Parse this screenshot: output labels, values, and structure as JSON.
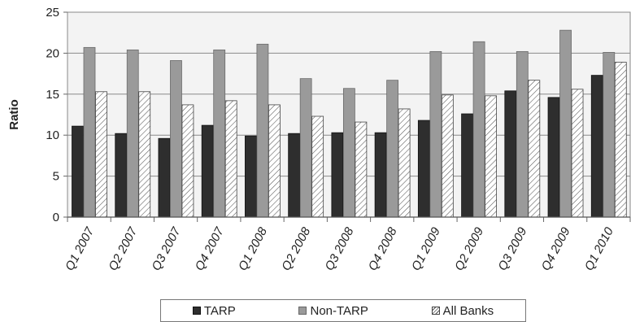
{
  "chart_data": {
    "type": "bar",
    "categories": [
      "Q1 2007",
      "Q2 2007",
      "Q3 2007",
      "Q4 2007",
      "Q1 2008",
      "Q2 2008",
      "Q3 2008",
      "Q4 2008",
      "Q1 2009",
      "Q2 2009",
      "Q3 2009",
      "Q4 2009",
      "Q1 2010"
    ],
    "series": [
      {
        "name": "TARP",
        "values": [
          11.1,
          10.2,
          9.6,
          11.2,
          9.9,
          10.2,
          10.3,
          10.3,
          11.8,
          12.6,
          15.4,
          14.6,
          17.3
        ],
        "color": "#2e2e2e"
      },
      {
        "name": "Non-TARP",
        "values": [
          20.7,
          20.4,
          19.1,
          20.4,
          21.1,
          16.9,
          15.7,
          16.7,
          20.2,
          21.4,
          20.2,
          22.8,
          20.1
        ],
        "color": "#9a9a9a"
      },
      {
        "name": "All Banks",
        "values": [
          15.3,
          15.3,
          13.7,
          14.2,
          13.7,
          12.3,
          11.6,
          13.2,
          14.9,
          14.8,
          16.7,
          15.6,
          18.9
        ],
        "color": "#ffffff"
      }
    ],
    "title": "",
    "xlabel": "",
    "ylabel": "Ratio",
    "ylim": [
      0,
      25
    ],
    "yticks": [
      0,
      5,
      10,
      15,
      20,
      25
    ],
    "grid": true,
    "legend_position": "bottom"
  }
}
